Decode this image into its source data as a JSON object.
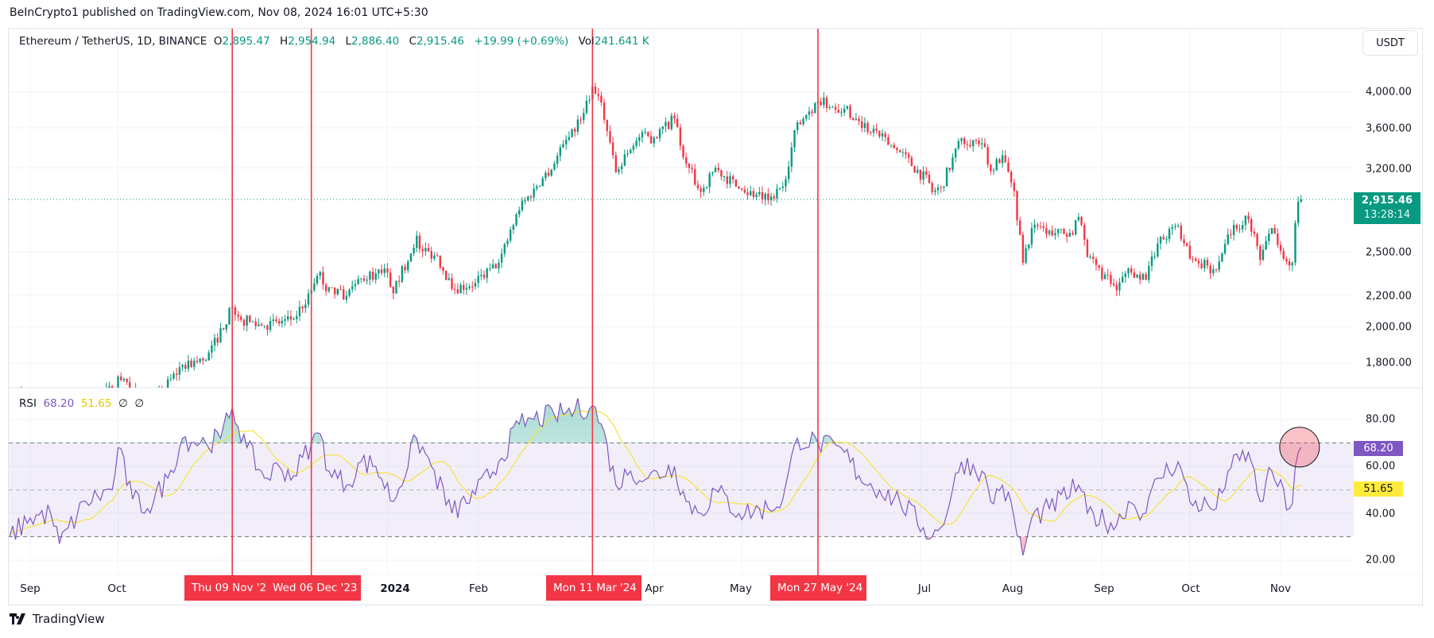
{
  "header": {
    "published": "BeInCrypto1 published on TradingView.com, Nov 08, 2024 16:01 UTC+5:30"
  },
  "legend": {
    "symbol": "Ethereum / TetherUS, 1D, BINANCE",
    "o_label": "O",
    "o": "2,895.47",
    "h_label": "H",
    "h": "2,954.94",
    "l_label": "L",
    "l": "2,886.40",
    "c_label": "C",
    "c": "2,915.46",
    "change": "+19.99 (+0.69%)",
    "vol_label": "Vol",
    "vol": "241.641 K"
  },
  "rsi_legend": {
    "name": "RSI",
    "rsi": "68.20",
    "ma": "51.65",
    "v3": "∅",
    "v4": "∅"
  },
  "currency_button": "USDT",
  "last_price": {
    "price": "2,915.46",
    "countdown": "13:28:14"
  },
  "rsi_labels": {
    "rsi": "68.20",
    "ma": "51.65"
  },
  "footer": {
    "logo_text": "TradingView"
  },
  "colors": {
    "up": "#089981",
    "down": "#f23645",
    "rsi": "#7e57c2",
    "rsi_ma": "#f5e33b",
    "marker": "#f23645"
  },
  "chart_data": [
    {
      "type": "candlestick",
      "title": "",
      "y_scale": "log",
      "y_ticks": [
        "4,000.00",
        "3,600.00",
        "3,200.00",
        "2,500.00",
        "2,200.00",
        "2,000.00",
        "1,800.00"
      ],
      "y_tick_values": [
        4000,
        3600,
        3200,
        2500,
        2200,
        2000,
        1800
      ],
      "x_ticks": [
        "Sep",
        "Oct",
        "2024",
        "Feb",
        "Apr",
        "May",
        "Jul",
        "Aug",
        "Sep",
        "Oct",
        "Nov"
      ],
      "x_tick_dates": [
        "2023-09-01",
        "2023-10-01",
        "2024-01-01",
        "2024-02-01",
        "2024-04-01",
        "2024-05-01",
        "2024-07-01",
        "2024-08-01",
        "2024-09-01",
        "2024-10-01",
        "2024-11-01"
      ],
      "grid": true,
      "close_keypoints": [
        [
          "2023-08-25",
          1650
        ],
        [
          "2023-09-01",
          1630
        ],
        [
          "2023-09-11",
          1550
        ],
        [
          "2023-09-30",
          1670
        ],
        [
          "2023-10-01",
          1730
        ],
        [
          "2023-10-11",
          1565
        ],
        [
          "2023-10-23",
          1790
        ],
        [
          "2023-10-31",
          1815
        ],
        [
          "2023-11-09",
          2120
        ],
        [
          "2023-11-12",
          2045
        ],
        [
          "2023-11-20",
          2010
        ],
        [
          "2023-11-30",
          2050
        ],
        [
          "2023-12-06",
          2230
        ],
        [
          "2023-12-09",
          2355
        ],
        [
          "2023-12-11",
          2225
        ],
        [
          "2023-12-18",
          2195
        ],
        [
          "2023-12-23",
          2310
        ],
        [
          "2023-12-28",
          2345
        ],
        [
          "2024-01-01",
          2350
        ],
        [
          "2024-01-03",
          2210
        ],
        [
          "2024-01-11",
          2620
        ],
        [
          "2024-01-12",
          2520
        ],
        [
          "2024-01-18",
          2470
        ],
        [
          "2024-01-23",
          2240
        ],
        [
          "2024-01-31",
          2280
        ],
        [
          "2024-02-08",
          2420
        ],
        [
          "2024-02-15",
          2825
        ],
        [
          "2024-02-20",
          3010
        ],
        [
          "2024-02-27",
          3240
        ],
        [
          "2024-03-01",
          3430
        ],
        [
          "2024-03-05",
          3560
        ],
        [
          "2024-03-11",
          4065
        ],
        [
          "2024-03-12",
          3980
        ],
        [
          "2024-03-14",
          3880
        ],
        [
          "2024-03-19",
          3160
        ],
        [
          "2024-03-22",
          3330
        ],
        [
          "2024-03-27",
          3500
        ],
        [
          "2024-04-01",
          3500
        ],
        [
          "2024-04-08",
          3700
        ],
        [
          "2024-04-12",
          3240
        ],
        [
          "2024-04-17",
          2980
        ],
        [
          "2024-04-22",
          3200
        ],
        [
          "2024-04-30",
          3010
        ],
        [
          "2024-05-10",
          2910
        ],
        [
          "2024-05-15",
          3030
        ],
        [
          "2024-05-20",
          3660
        ],
        [
          "2024-05-27",
          3890
        ],
        [
          "2024-06-05",
          3810
        ],
        [
          "2024-06-10",
          3670
        ],
        [
          "2024-06-17",
          3510
        ],
        [
          "2024-06-24",
          3350
        ],
        [
          "2024-07-04",
          3060
        ],
        [
          "2024-07-05",
          2980
        ],
        [
          "2024-07-08",
          3020
        ],
        [
          "2024-07-15",
          3490
        ],
        [
          "2024-07-22",
          3440
        ],
        [
          "2024-07-25",
          3170
        ],
        [
          "2024-07-29",
          3320
        ],
        [
          "2024-08-02",
          2990
        ],
        [
          "2024-08-05",
          2420
        ],
        [
          "2024-08-08",
          2680
        ],
        [
          "2024-08-14",
          2660
        ],
        [
          "2024-08-22",
          2630
        ],
        [
          "2024-08-24",
          2770
        ],
        [
          "2024-08-27",
          2460
        ],
        [
          "2024-09-06",
          2230
        ],
        [
          "2024-09-10",
          2380
        ],
        [
          "2024-09-16",
          2300
        ],
        [
          "2024-09-20",
          2560
        ],
        [
          "2024-09-27",
          2700
        ],
        [
          "2024-10-01",
          2450
        ],
        [
          "2024-10-10",
          2370
        ],
        [
          "2024-10-14",
          2630
        ],
        [
          "2024-10-21",
          2750
        ],
        [
          "2024-10-25",
          2440
        ],
        [
          "2024-10-29",
          2680
        ],
        [
          "2024-11-04",
          2400
        ],
        [
          "2024-11-05",
          2420
        ],
        [
          "2024-11-06",
          2720
        ],
        [
          "2024-11-07",
          2895
        ],
        [
          "2024-11-08",
          2915.46
        ]
      ],
      "last_price": 2915.46
    },
    {
      "type": "line",
      "title": "RSI",
      "ylim": [
        15,
        90
      ],
      "y_ticks": [
        "80.00",
        "60.00",
        "40.00",
        "20.00"
      ],
      "y_tick_values": [
        80,
        60,
        40,
        20
      ],
      "bands": [
        70,
        50,
        30
      ],
      "series": [
        {
          "name": "RSI",
          "last": 68.2,
          "points": [
            [
              "2023-08-25",
              30
            ],
            [
              "2023-09-01",
              38
            ],
            [
              "2023-09-08",
              40
            ],
            [
              "2023-09-11",
              27
            ],
            [
              "2023-09-20",
              45
            ],
            [
              "2023-09-29",
              50
            ],
            [
              "2023-10-01",
              68
            ],
            [
              "2023-10-06",
              46
            ],
            [
              "2023-10-11",
              42
            ],
            [
              "2023-10-18",
              55
            ],
            [
              "2023-10-23",
              72
            ],
            [
              "2023-10-31",
              70
            ],
            [
              "2023-11-05",
              72
            ],
            [
              "2023-11-09",
              85
            ],
            [
              "2023-11-14",
              68
            ],
            [
              "2023-11-20",
              55
            ],
            [
              "2023-11-25",
              60
            ],
            [
              "2023-11-30",
              56
            ],
            [
              "2023-12-06",
              70
            ],
            [
              "2023-12-09",
              74
            ],
            [
              "2023-12-12",
              58
            ],
            [
              "2023-12-18",
              52
            ],
            [
              "2023-12-23",
              62
            ],
            [
              "2023-12-28",
              60
            ],
            [
              "2024-01-03",
              45
            ],
            [
              "2024-01-11",
              72
            ],
            [
              "2024-01-16",
              60
            ],
            [
              "2024-01-23",
              40
            ],
            [
              "2024-01-31",
              48
            ],
            [
              "2024-02-08",
              62
            ],
            [
              "2024-02-15",
              78
            ],
            [
              "2024-02-20",
              80
            ],
            [
              "2024-02-27",
              82
            ],
            [
              "2024-03-05",
              84
            ],
            [
              "2024-03-11",
              86
            ],
            [
              "2024-03-14",
              78
            ],
            [
              "2024-03-19",
              52
            ],
            [
              "2024-03-24",
              58
            ],
            [
              "2024-03-30",
              55
            ],
            [
              "2024-04-08",
              60
            ],
            [
              "2024-04-12",
              45
            ],
            [
              "2024-04-17",
              40
            ],
            [
              "2024-04-22",
              50
            ],
            [
              "2024-04-30",
              40
            ],
            [
              "2024-05-10",
              42
            ],
            [
              "2024-05-15",
              46
            ],
            [
              "2024-05-20",
              72
            ],
            [
              "2024-05-27",
              70
            ],
            [
              "2024-06-05",
              66
            ],
            [
              "2024-06-10",
              56
            ],
            [
              "2024-06-17",
              50
            ],
            [
              "2024-06-24",
              45
            ],
            [
              "2024-07-05",
              30
            ],
            [
              "2024-07-08",
              34
            ],
            [
              "2024-07-15",
              62
            ],
            [
              "2024-07-22",
              58
            ],
            [
              "2024-07-25",
              45
            ],
            [
              "2024-07-29",
              52
            ],
            [
              "2024-08-02",
              38
            ],
            [
              "2024-08-05",
              22
            ],
            [
              "2024-08-08",
              38
            ],
            [
              "2024-08-14",
              42
            ],
            [
              "2024-08-24",
              52
            ],
            [
              "2024-08-27",
              40
            ],
            [
              "2024-09-06",
              35
            ],
            [
              "2024-09-10",
              45
            ],
            [
              "2024-09-16",
              40
            ],
            [
              "2024-09-20",
              55
            ],
            [
              "2024-09-27",
              62
            ],
            [
              "2024-10-01",
              45
            ],
            [
              "2024-10-10",
              42
            ],
            [
              "2024-10-14",
              58
            ],
            [
              "2024-10-21",
              66
            ],
            [
              "2024-10-25",
              45
            ],
            [
              "2024-10-29",
              58
            ],
            [
              "2024-11-04",
              42
            ],
            [
              "2024-11-05",
              44
            ],
            [
              "2024-11-06",
              60
            ],
            [
              "2024-11-07",
              66
            ],
            [
              "2024-11-08",
              68.2
            ]
          ]
        },
        {
          "name": "RSI-based MA",
          "last": 51.65,
          "smoothing": "SMA 14"
        }
      ]
    }
  ],
  "markers": [
    {
      "label": "Thu 09 Nov '23",
      "date": "2023-11-09"
    },
    {
      "label": "Wed 06 Dec '23",
      "date": "2023-12-06"
    },
    {
      "label": "Mon 11 Mar '24",
      "date": "2024-03-11"
    },
    {
      "label": "Mon 27 May '24",
      "date": "2024-05-27"
    }
  ],
  "highlight_circle": {
    "date": "2024-11-08",
    "rsi": 68.2
  }
}
